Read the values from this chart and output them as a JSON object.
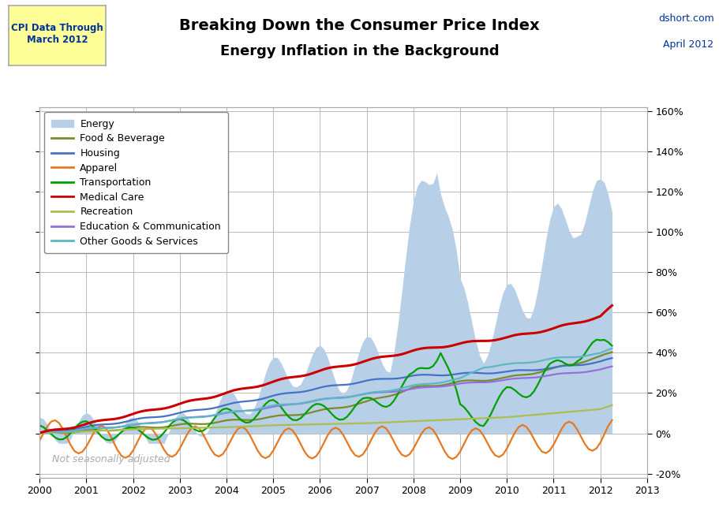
{
  "title_line1": "Breaking Down the Consumer Price Index",
  "title_line2": "Energy Inflation in the Background",
  "top_left_label": "CPI Data Through\nMarch 2012",
  "top_right_line1": "dshort.com",
  "top_right_line2": "April 2012",
  "watermark": "Not seasonally adjusted",
  "ylim": [
    -0.22,
    1.62
  ],
  "yticks": [
    -0.2,
    0.0,
    0.2,
    0.4,
    0.6,
    0.8,
    1.0,
    1.2,
    1.4,
    1.6
  ],
  "xlim_start": 2000.0,
  "xlim_end": 2013.0,
  "xticks": [
    2000,
    2001,
    2002,
    2003,
    2004,
    2005,
    2006,
    2007,
    2008,
    2009,
    2010,
    2011,
    2012,
    2013
  ],
  "energy_color": "#b8cfe8",
  "series_colors": {
    "Food & Beverage": "#7B8B2B",
    "Housing": "#4472C4",
    "Apparel": "#E87820",
    "Transportation": "#00A000",
    "Medical Care": "#CC0000",
    "Recreation": "#AABF50",
    "Education & Communication": "#9370DB",
    "Other Goods & Services": "#5BB8C4"
  },
  "background_color": "#FFFFFF",
  "grid_color": "#BBBBBB"
}
